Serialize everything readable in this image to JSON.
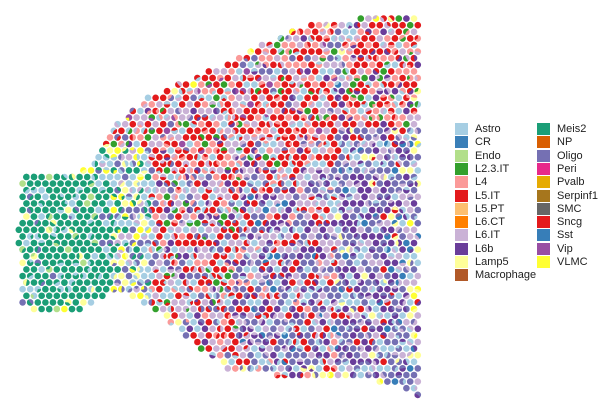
{
  "chart_data": {
    "type": "scatter",
    "description_kind": "spatial transcriptomics spot plot with per-spot cell-type composition pies",
    "title": "",
    "xlabel": "",
    "ylabel": "",
    "axes_visible": false,
    "grid": false,
    "legend_position": "right",
    "legend_columns": 2,
    "categories": [
      {
        "name": "Astro",
        "color": "#a6cee3"
      },
      {
        "name": "CR",
        "color": "#3a7fb8"
      },
      {
        "name": "Endo",
        "color": "#b2df8a"
      },
      {
        "name": "L2.3.IT",
        "color": "#33a02c"
      },
      {
        "name": "L4",
        "color": "#fb9a99"
      },
      {
        "name": "L5.IT",
        "color": "#e31a1c"
      },
      {
        "name": "L5.PT",
        "color": "#fdbf6f"
      },
      {
        "name": "L6.CT",
        "color": "#ff7f00"
      },
      {
        "name": "L6.IT",
        "color": "#cab2d6"
      },
      {
        "name": "L6b",
        "color": "#6a3d9a"
      },
      {
        "name": "Lamp5",
        "color": "#ffff99"
      },
      {
        "name": "Macrophage",
        "color": "#b15928"
      },
      {
        "name": "Meis2",
        "color": "#1b9e77"
      },
      {
        "name": "NP",
        "color": "#d95f02"
      },
      {
        "name": "Oligo",
        "color": "#7570b3"
      },
      {
        "name": "Peri",
        "color": "#e7298a"
      },
      {
        "name": "Pvalb",
        "color": "#e6ab02"
      },
      {
        "name": "Serpinf1",
        "color": "#a6761d"
      },
      {
        "name": "SMC",
        "color": "#666666"
      },
      {
        "name": "Sncg",
        "color": "#e41a1c"
      },
      {
        "name": "Sst",
        "color": "#377eb8"
      },
      {
        "name": "Vip",
        "color": "#984ea3"
      },
      {
        "name": "VLMC",
        "color": "#ffff33"
      }
    ]
  }
}
